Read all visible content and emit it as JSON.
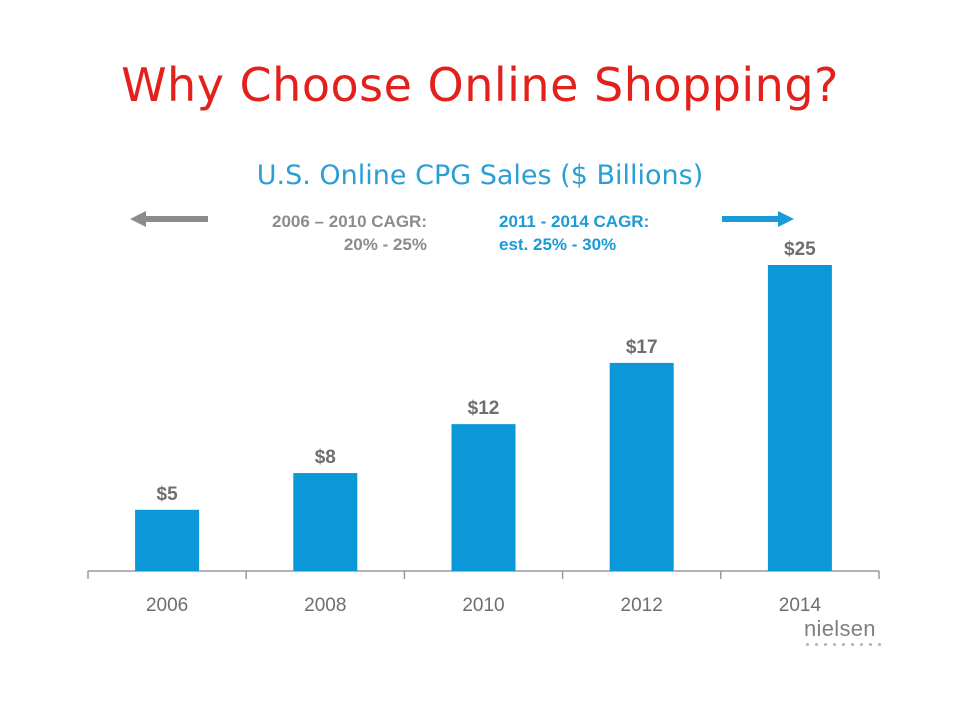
{
  "slide": {
    "title": "Why Choose Online Shopping?"
  },
  "annotations": {
    "left_line1": "2006 – 2010 CAGR:",
    "left_line2": "20% - 25%",
    "right_line1": "2011 - 2014 CAGR:",
    "right_line2": "est. 25% - 30%"
  },
  "logo": {
    "text": "nielsen"
  },
  "colors": {
    "title": "#e3211c",
    "chart_title": "#2a9fd6",
    "bar": "#0b97d8",
    "left_annotation": "#8c8c8c",
    "right_annotation": "#1a9ad6"
  },
  "chart_data": {
    "type": "bar",
    "title": "U.S. Online CPG Sales ($ Billions)",
    "categories": [
      "2006",
      "2008",
      "2010",
      "2012",
      "2014"
    ],
    "values": [
      5,
      8,
      12,
      17,
      25
    ],
    "data_labels": [
      "$5",
      "$8",
      "$12",
      "$17",
      "$25"
    ],
    "xlabel": "",
    "ylabel": "",
    "ylim": [
      0,
      25
    ],
    "grid": false,
    "legend": "none"
  }
}
